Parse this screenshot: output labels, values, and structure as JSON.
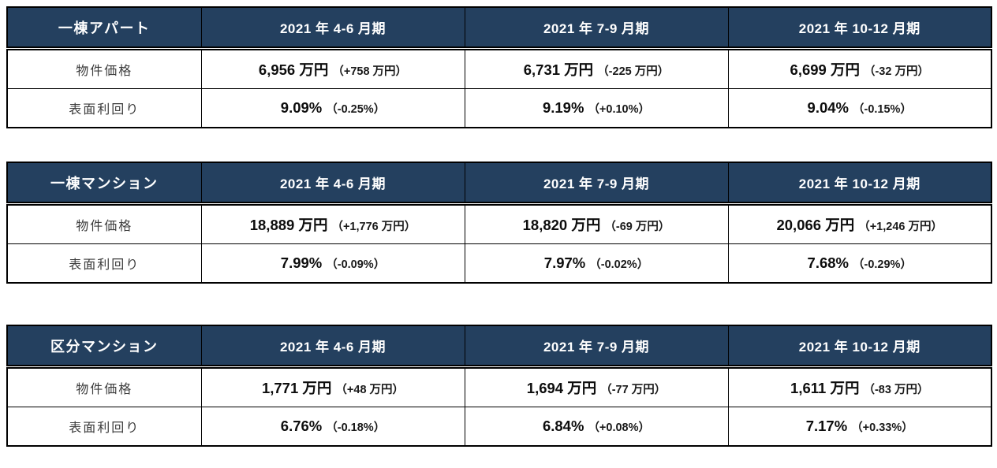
{
  "style": {
    "header_bg": "#24405f",
    "header_text_color": "#ffffff",
    "border_color": "#000000",
    "label_text_color": "#3b3b3b",
    "value_text_color": "#0d0d0d"
  },
  "tables": [
    {
      "title": "一棟アパート",
      "columns": [
        "2021 年 4-6 月期",
        "2021 年 7-9 月期",
        "2021 年 10-12 月期"
      ],
      "rows": [
        {
          "label": "物件価格",
          "values": [
            {
              "main": "6,956 万円",
              "delta": "（+758 万円）"
            },
            {
              "main": "6,731 万円",
              "delta": "（-225 万円）"
            },
            {
              "main": "6,699 万円",
              "delta": "（-32 万円）"
            }
          ]
        },
        {
          "label": "表面利回り",
          "values": [
            {
              "main": "9.09%",
              "delta": "（-0.25%）"
            },
            {
              "main": "9.19%",
              "delta": "（+0.10%）"
            },
            {
              "main": "9.04%",
              "delta": "（-0.15%）"
            }
          ]
        }
      ]
    },
    {
      "title": "一棟マンション",
      "columns": [
        "2021 年 4-6 月期",
        "2021 年 7-9 月期",
        "2021 年 10-12 月期"
      ],
      "rows": [
        {
          "label": "物件価格",
          "values": [
            {
              "main": "18,889 万円",
              "delta": "（+1,776 万円）"
            },
            {
              "main": "18,820 万円",
              "delta": "（-69 万円）"
            },
            {
              "main": "20,066 万円",
              "delta": "（+1,246 万円）"
            }
          ]
        },
        {
          "label": "表面利回り",
          "values": [
            {
              "main": "7.99%",
              "delta": "（-0.09%）"
            },
            {
              "main": "7.97%",
              "delta": "（-0.02%）"
            },
            {
              "main": "7.68%",
              "delta": "（-0.29%）"
            }
          ]
        }
      ]
    },
    {
      "title": "区分マンション",
      "columns": [
        "2021 年 4-6 月期",
        "2021 年 7-9 月期",
        "2021 年 10-12 月期"
      ],
      "rows": [
        {
          "label": "物件価格",
          "values": [
            {
              "main": "1,771 万円",
              "delta": "（+48 万円）"
            },
            {
              "main": "1,694 万円",
              "delta": "（-77 万円）"
            },
            {
              "main": "1,611 万円",
              "delta": "（-83 万円）"
            }
          ]
        },
        {
          "label": "表面利回り",
          "values": [
            {
              "main": "6.76%",
              "delta": "（-0.18%）"
            },
            {
              "main": "6.84%",
              "delta": "（+0.08%）"
            },
            {
              "main": "7.17%",
              "delta": "（+0.33%）"
            }
          ]
        }
      ]
    }
  ]
}
